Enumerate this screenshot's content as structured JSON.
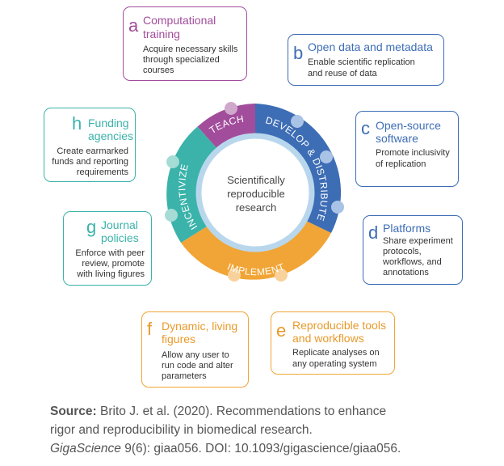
{
  "center": {
    "line1": "Scientifically",
    "line2": "reproducible",
    "line3": "research"
  },
  "ring": {
    "teach": "TEACH",
    "develop": "DEVELOP & DISTRIBUTE",
    "implement": "IMPLEMENT",
    "incentivize": "INCENTIVIZE"
  },
  "colors": {
    "teach": "#a24d9c",
    "develop": "#3d6db5",
    "implement": "#f1a536",
    "incentivize": "#3bb3aa"
  },
  "boxes": {
    "a": {
      "letter": "a",
      "title1": "Computational",
      "title2": "training",
      "body1": "Acquire necessary skills",
      "body2": "through specialized",
      "body3": "courses"
    },
    "b": {
      "letter": "b",
      "title1": "Open data and metadata",
      "body1": "Enable scientific replication",
      "body2": "and reuse of data"
    },
    "c": {
      "letter": "c",
      "title1": "Open-source",
      "title2": "software",
      "body1": "Promote inclusivity",
      "body2": "of replication"
    },
    "d": {
      "letter": "d",
      "title1": "Platforms",
      "body1": "Share experiment",
      "body2": "protocols,",
      "body3": "workflows, and",
      "body4": "annotations"
    },
    "e": {
      "letter": "e",
      "title1": "Reproducible tools",
      "title2": "and workflows",
      "body1": "Replicate analyses on",
      "body2": "any operating system"
    },
    "f": {
      "letter": "f",
      "title1": "Dynamic, living",
      "title2": "figures",
      "body1": "Allow any user to",
      "body2": "run code and alter",
      "body3": "parameters"
    },
    "g": {
      "letter": "g",
      "title1": "Journal",
      "title2": "policies",
      "body1": "Enforce with peer",
      "body2": "review, promote",
      "body3": "with living figures"
    },
    "h": {
      "letter": "h",
      "title1": "Funding",
      "title2": "agencies",
      "body1": "Create earmarked",
      "body2": "funds and reporting",
      "body3": "requirements"
    }
  },
  "source": {
    "label": "Source:",
    "text1": " Brito J. et al. (2020). Recommendations to enhance",
    "text2": "rigor and reproducibility in biomedical research.",
    "journal": "GigaScience",
    "text3": " 9(6): giaa056. DOI: 10.1093/gigascience/giaa056."
  }
}
